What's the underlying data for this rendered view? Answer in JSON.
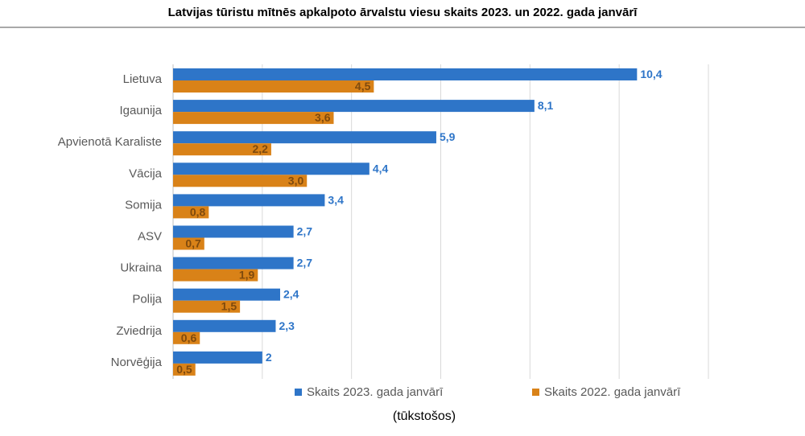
{
  "chart_data": {
    "type": "bar",
    "orientation": "horizontal",
    "title": "Latvijas tūristu mītnēs apkalpoto ārvalstu viesu skaits 2023. un 2022. gada janvārī",
    "unit_label": "(tūkstošos)",
    "categories": [
      "Lietuva",
      "Igaunija",
      "Apvienotā Karaliste",
      "Vācija",
      "Somija",
      "ASV",
      "Ukraina",
      "Polija",
      "Zviedrija",
      "Norvēģija"
    ],
    "series": [
      {
        "name": "Skaits 2023. gada janvārī",
        "color": "#2e75c8",
        "label_color": "#2e75c8",
        "values": [
          10.4,
          8.1,
          5.9,
          4.4,
          3.4,
          2.7,
          2.7,
          2.4,
          2.3,
          2
        ],
        "labels": [
          "10,4",
          "8,1",
          "5,9",
          "4,4",
          "3,4",
          "2,7",
          "2,7",
          "2,4",
          "2,3",
          "2"
        ]
      },
      {
        "name": "Skaits 2022. gada janvārī",
        "color": "#d98218",
        "label_color": "#7f4a0d",
        "values": [
          4.5,
          3.6,
          2.2,
          3.0,
          0.8,
          0.7,
          1.9,
          1.5,
          0.6,
          0.5
        ],
        "labels": [
          "4,5",
          "3,6",
          "2,2",
          "3,0",
          "0,8",
          "0,7",
          "1,9",
          "1,5",
          "0,6",
          "0,5"
        ]
      }
    ],
    "xlim": [
      0,
      12
    ],
    "grid": true,
    "legend_position": "bottom"
  }
}
